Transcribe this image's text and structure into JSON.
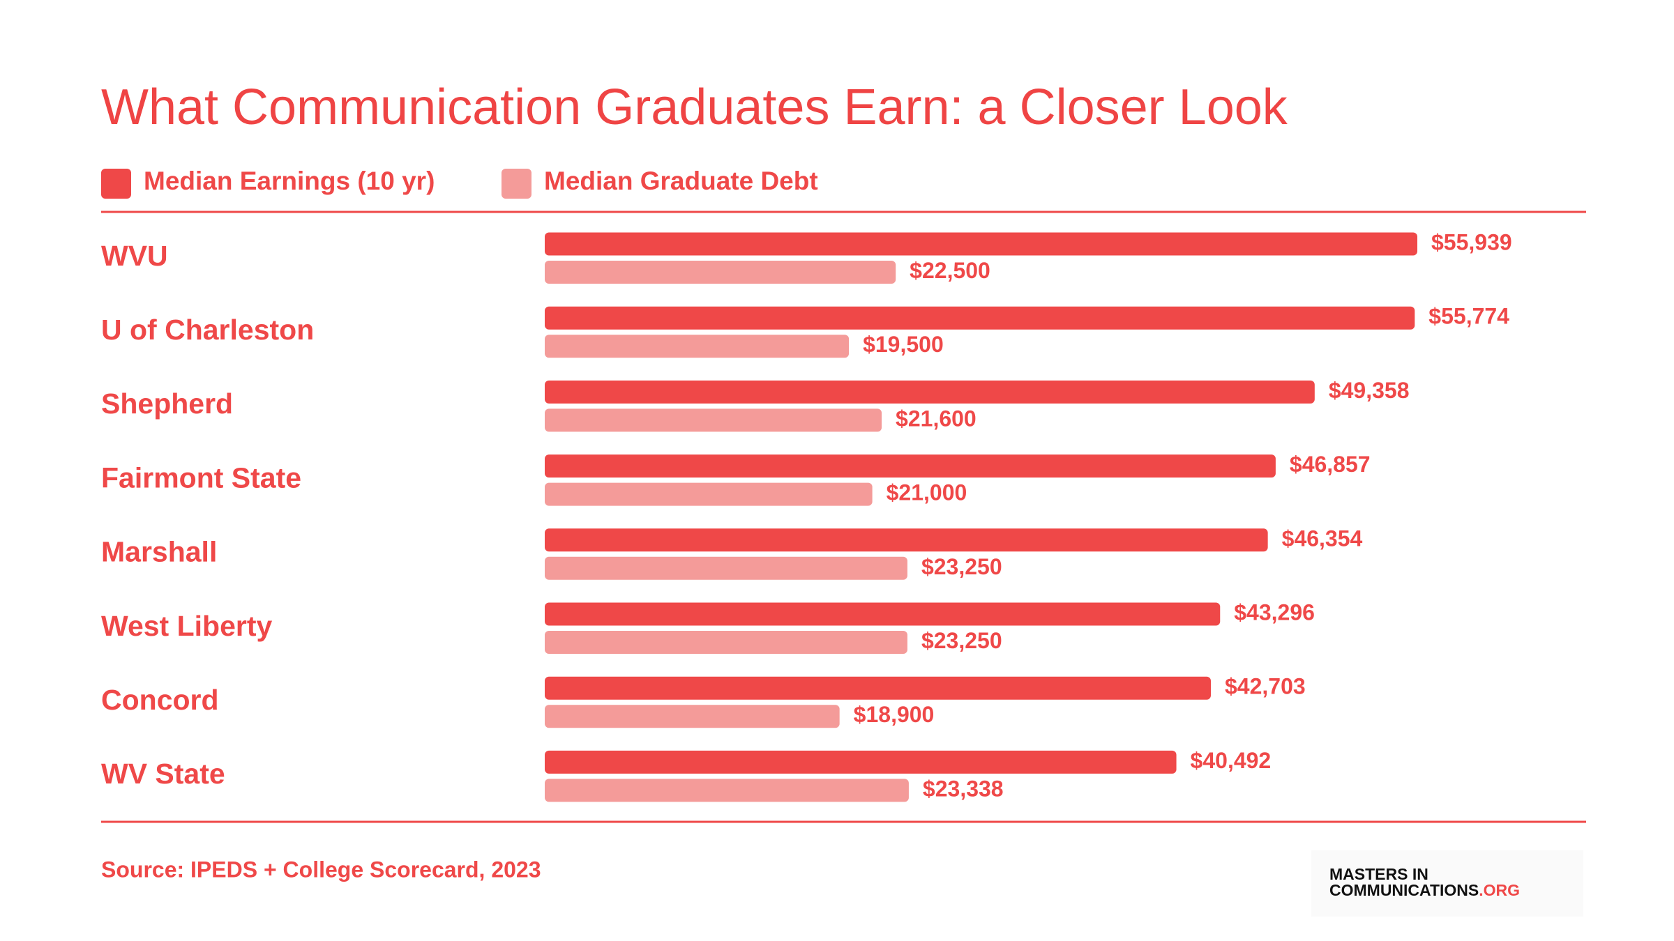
{
  "chart_data": {
    "type": "bar",
    "title": "What Communication Graduates Earn: a Closer Look",
    "categories": [
      "WVU",
      "U of Charleston",
      "Shepherd",
      "Fairmont State",
      "Marshall",
      "West Liberty",
      "Concord",
      "WV State"
    ],
    "series": [
      {
        "name": "Median Earnings (10 yr)",
        "color": "#ef4848",
        "values": [
          55939,
          55774,
          49358,
          46857,
          46354,
          43296,
          42703,
          40492
        ],
        "value_labels": [
          "$55,939",
          "$55,774",
          "$49,358",
          "$46,857",
          "$46,354",
          "$43,296",
          "$42,703",
          "$40,492"
        ]
      },
      {
        "name": "Median Graduate Debt",
        "color": "#f49b99",
        "values": [
          22500,
          19500,
          21600,
          21000,
          23250,
          23250,
          18900,
          23338
        ],
        "value_labels": [
          "$22,500",
          "$19,500",
          "$21,600",
          "$21,000",
          "$23,250",
          "$23,250",
          "$18,900",
          "$23,338"
        ]
      }
    ],
    "source": "Source: IPEDS + College Scorecard, 2023"
  },
  "logo": {
    "line1": "MASTERS IN",
    "line2": "COMMUNICATIONS",
    "suffix": ".ORG"
  }
}
